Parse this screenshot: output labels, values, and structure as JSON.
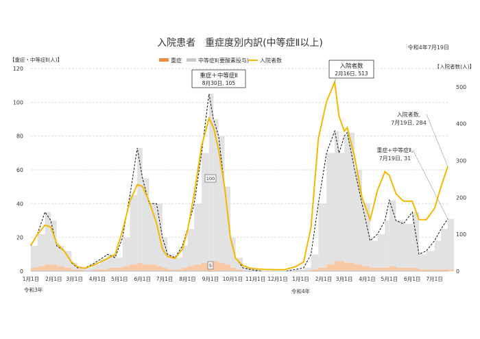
{
  "chart_data": {
    "type": "bar+line",
    "title": "入院患者　重症度別内訳(中等症Ⅱ以上)",
    "date_label": "令和4年7月19日",
    "left_axis_label": "【重症・中等症Ⅱ(人)】",
    "right_axis_label": "【入院者数(人)】",
    "left_ylim": [
      0,
      120
    ],
    "left_ticks": [
      0,
      20,
      40,
      60,
      80,
      100,
      120
    ],
    "right_ylim": [
      0,
      550
    ],
    "right_ticks": [
      0,
      100,
      200,
      300,
      400,
      500
    ],
    "grid": true,
    "legend_placement": "top",
    "legend": [
      {
        "name": "重症",
        "color": "#f08c3c"
      },
      {
        "name": "中等症Ⅱ(要酸素投与)",
        "color": "#c8c8c8"
      },
      {
        "name": "入院者数",
        "color": "#f5b800"
      }
    ],
    "x_ticks": [
      {
        "date": "2021-01-01",
        "label": "1月1日"
      },
      {
        "date": "2021-02-01",
        "label": "2月1日"
      },
      {
        "date": "2021-03-01",
        "label": "3月1日"
      },
      {
        "date": "2021-04-01",
        "label": "4月1日"
      },
      {
        "date": "2021-05-01",
        "label": "5月1日"
      },
      {
        "date": "2021-06-01",
        "label": "6月1日"
      },
      {
        "date": "2021-07-01",
        "label": "7月1日"
      },
      {
        "date": "2021-08-01",
        "label": "8月1日"
      },
      {
        "date": "2021-09-01",
        "label": "9月1日"
      },
      {
        "date": "2021-10-01",
        "label": "10月1日"
      },
      {
        "date": "2021-11-01",
        "label": "11月1日"
      },
      {
        "date": "2021-12-01",
        "label": "12月1日"
      },
      {
        "date": "2022-01-01",
        "label": "1月1日"
      },
      {
        "date": "2022-02-01",
        "label": "2月1日"
      },
      {
        "date": "2022-03-01",
        "label": "3月1日"
      },
      {
        "date": "2022-04-01",
        "label": "4月1日"
      },
      {
        "date": "2022-05-01",
        "label": "5月1日"
      },
      {
        "date": "2022-06-01",
        "label": "6月1日"
      },
      {
        "date": "2022-07-01",
        "label": "7月1日"
      }
    ],
    "year_labels": [
      {
        "date": "2021-01-01",
        "label": "令和3年"
      },
      {
        "date": "2022-01-01",
        "label": "令和4年"
      }
    ],
    "dates": [
      "2021-01-01",
      "2021-01-10",
      "2021-01-20",
      "2021-01-28",
      "2021-02-05",
      "2021-02-15",
      "2021-02-25",
      "2021-03-05",
      "2021-03-15",
      "2021-03-25",
      "2021-04-05",
      "2021-04-15",
      "2021-04-25",
      "2021-05-05",
      "2021-05-15",
      "2021-05-25",
      "2021-06-01",
      "2021-06-10",
      "2021-06-20",
      "2021-06-28",
      "2021-07-05",
      "2021-07-15",
      "2021-07-25",
      "2021-08-01",
      "2021-08-10",
      "2021-08-20",
      "2021-08-30",
      "2021-09-05",
      "2021-09-12",
      "2021-09-20",
      "2021-09-28",
      "2021-10-05",
      "2021-10-15",
      "2021-10-25",
      "2021-11-10",
      "2021-11-25",
      "2021-12-10",
      "2021-12-25",
      "2022-01-05",
      "2022-01-15",
      "2022-01-25",
      "2022-02-05",
      "2022-02-16",
      "2022-02-22",
      "2022-03-01",
      "2022-03-05",
      "2022-03-15",
      "2022-03-25",
      "2022-04-05",
      "2022-04-15",
      "2022-04-25",
      "2022-05-01",
      "2022-05-10",
      "2022-05-20",
      "2022-06-01",
      "2022-06-10",
      "2022-06-20",
      "2022-07-01",
      "2022-07-10",
      "2022-07-19"
    ],
    "severe_plus_moderate": [
      15,
      22,
      35,
      30,
      15,
      12,
      5,
      2,
      2,
      4,
      7,
      10,
      8,
      20,
      45,
      73,
      55,
      40,
      40,
      20,
      10,
      8,
      15,
      25,
      40,
      70,
      105,
      90,
      80,
      50,
      20,
      8,
      2,
      1,
      0,
      0,
      0,
      1,
      2,
      10,
      40,
      70,
      83,
      70,
      80,
      82,
      60,
      40,
      18,
      22,
      30,
      42,
      30,
      28,
      35,
      10,
      12,
      18,
      25,
      31
    ],
    "severe": [
      2,
      3,
      4,
      4,
      3,
      2,
      1,
      1,
      0,
      1,
      1,
      2,
      2,
      3,
      4,
      5,
      4,
      4,
      3,
      2,
      1,
      1,
      2,
      3,
      4,
      5,
      5,
      6,
      5,
      4,
      2,
      1,
      0,
      0,
      0,
      0,
      0,
      0,
      0,
      1,
      2,
      4,
      6,
      6,
      5,
      5,
      4,
      3,
      2,
      2,
      2,
      3,
      2,
      2,
      2,
      1,
      1,
      1,
      1,
      1
    ],
    "hospitalized": [
      70,
      100,
      125,
      120,
      75,
      55,
      25,
      12,
      8,
      15,
      25,
      35,
      45,
      110,
      190,
      235,
      230,
      190,
      130,
      60,
      40,
      35,
      60,
      110,
      210,
      340,
      415,
      390,
      330,
      230,
      90,
      35,
      15,
      8,
      5,
      4,
      4,
      12,
      25,
      120,
      360,
      460,
      513,
      420,
      380,
      390,
      310,
      200,
      140,
      220,
      270,
      260,
      210,
      190,
      190,
      140,
      140,
      170,
      230,
      284
    ],
    "annotations": [
      {
        "title": "重症＋中等症Ⅱ",
        "text": "8月30日, 105"
      },
      {
        "title": "入院者数",
        "text": "2月16日, 513"
      },
      {
        "title": "入院者数,",
        "text": "7月19日, 284"
      },
      {
        "title": "重症+中等症Ⅱ,",
        "text": "7月19日, 31"
      }
    ],
    "small_labels": [
      {
        "date": "2021-09-01",
        "value": "100"
      },
      {
        "date": "2021-09-01",
        "value": "5"
      }
    ]
  }
}
